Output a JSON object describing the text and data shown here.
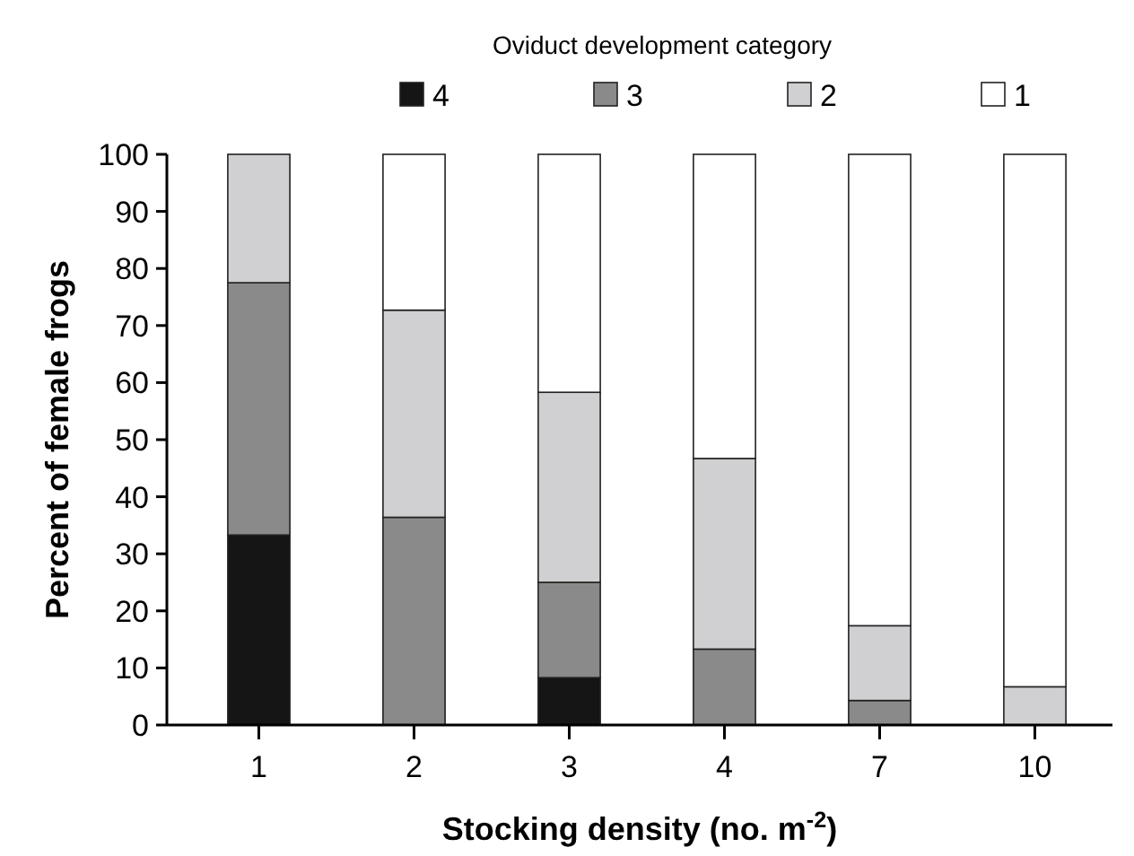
{
  "chart_data": {
    "type": "bar",
    "stacked": true,
    "legend_title": "Oviduct development category",
    "legend": "top",
    "xlabel": "Stocking density (no. m$^{-2}$)",
    "ylabel": "Percent of female frogs",
    "categories": [
      "1",
      "2",
      "3",
      "4",
      "7",
      "10"
    ],
    "series": [
      {
        "name": "4",
        "color": "#151515",
        "values": [
          33.3,
          0,
          8.3,
          0,
          0,
          0
        ]
      },
      {
        "name": "3",
        "color": "#8a8a8a",
        "values": [
          44.2,
          36.4,
          16.7,
          13.3,
          4.3,
          0
        ]
      },
      {
        "name": "2",
        "color": "#d0d0d2",
        "values": [
          22.5,
          36.3,
          33.3,
          33.4,
          13.1,
          6.7
        ]
      },
      {
        "name": "1",
        "color": "#ffffff",
        "values": [
          0,
          27.3,
          41.7,
          53.3,
          82.6,
          93.3
        ]
      }
    ],
    "ylim": [
      0,
      100
    ],
    "yticks": [
      0,
      10,
      20,
      30,
      40,
      50,
      60,
      70,
      80,
      90,
      100
    ],
    "grid": false
  }
}
